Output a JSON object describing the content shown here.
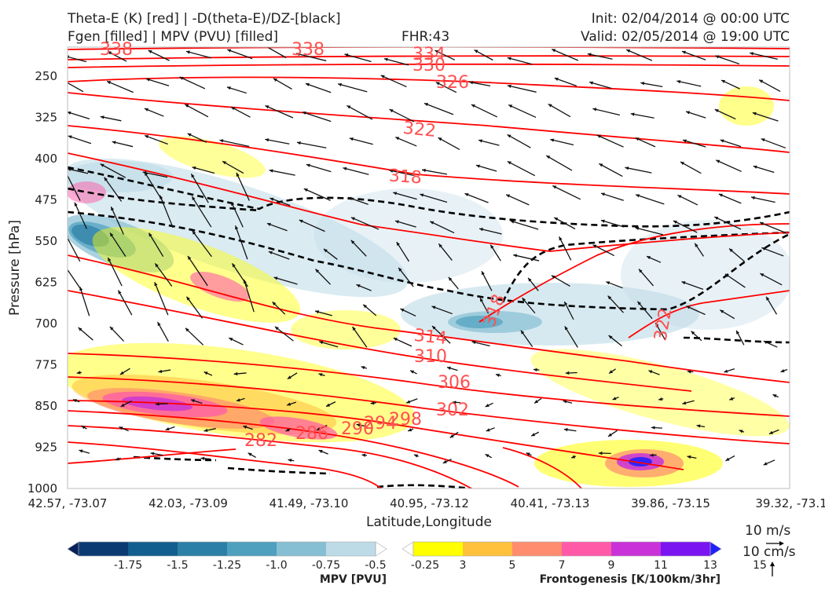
{
  "header": {
    "line1_left": "Theta-E (K) [red] | -D(theta-E)/DZ-[black]",
    "line2_left": "Fgen [filled] | MPV (PVU) [filled]",
    "fhr": "FHR:43",
    "init": "Init: 02/04/2014 @ 00:00 UTC",
    "valid": "Valid: 02/05/2014 @ 19:00 UTC"
  },
  "chart_data": {
    "type": "cross-section",
    "xlabel": "Latitude,Longitude",
    "ylabel": "Pressure [hPa]",
    "x_ticks": [
      "42.57, -73.07",
      "42.03, -73.09",
      "41.49, -73.10",
      "40.95, -73.12",
      "40.41, -73.13",
      "39.86, -73.15",
      "39.32, -73.1"
    ],
    "y_ticks": [
      250,
      325,
      400,
      475,
      550,
      625,
      700,
      775,
      850,
      925,
      1000
    ],
    "ylim": [
      1000,
      200
    ],
    "theta_e_contour_labels": [
      "338",
      "338",
      "334",
      "330",
      "326",
      "322",
      "318",
      "314",
      "310",
      "306",
      "302",
      "298",
      "294",
      "290",
      "286",
      "282",
      "318",
      "322"
    ],
    "theta_e_color": "#ff0000",
    "ddz_contour_color": "#000000",
    "vector_key": {
      "horizontal": "10 m/s",
      "vertical": "10 cm/s"
    },
    "colorbars": [
      {
        "name": "MPV [PVU]",
        "ticks": [
          "-1.75",
          "-1.5",
          "-1.25",
          "-1.0",
          "-0.75",
          "-0.5",
          "-0.25"
        ],
        "colors": [
          "#08205a",
          "#0b3a73",
          "#125e8e",
          "#2c7fa6",
          "#4f9fbf",
          "#86bfd3",
          "#bcdbe6",
          "#ffffff"
        ]
      },
      {
        "name": "Frontogenesis [K/100km/3hr]",
        "ticks": [
          "3",
          "5",
          "7",
          "9",
          "11",
          "13",
          "15"
        ],
        "colors": [
          "#ffffff",
          "#ffff00",
          "#ffc03c",
          "#ff8c6e",
          "#ff5aa8",
          "#c832d8",
          "#7a14f0",
          "#2020ff"
        ]
      }
    ]
  }
}
